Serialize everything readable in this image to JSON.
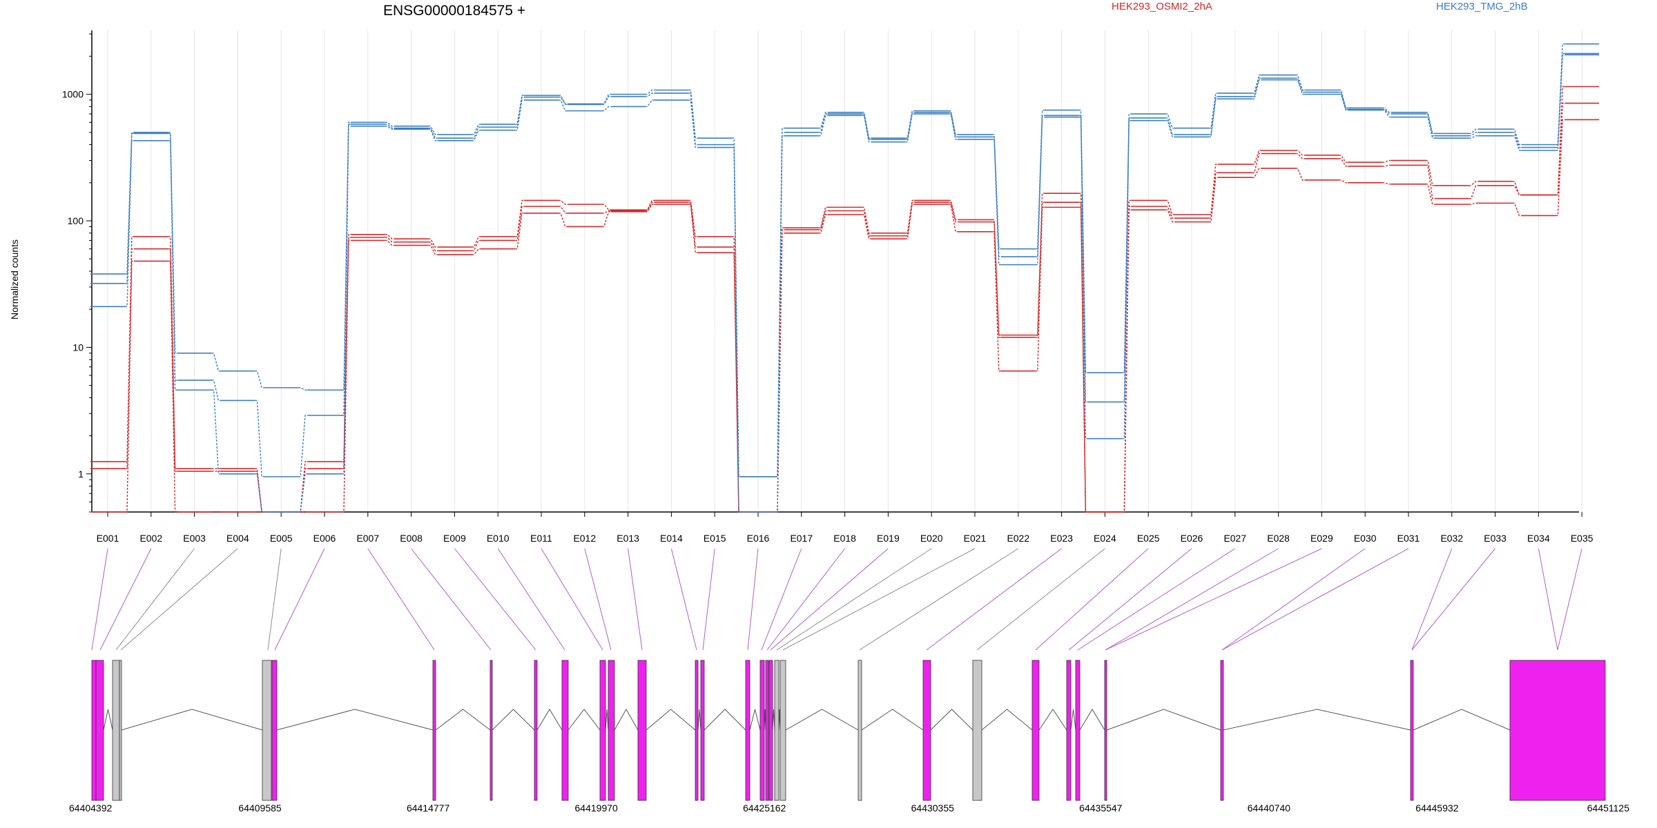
{
  "chart_data": {
    "type": "line",
    "title": "ENSG00000184575 +",
    "ylabel": "Normalized counts",
    "yscale": "log",
    "ylim": [
      0.5,
      3200
    ],
    "yticks": [
      {
        "value": 1,
        "label": "1"
      },
      {
        "value": 10,
        "label": "10"
      },
      {
        "value": 100,
        "label": "100"
      },
      {
        "value": 1000,
        "label": "1000"
      }
    ],
    "categories": [
      "E001",
      "E002",
      "E003",
      "E004",
      "E005",
      "E006",
      "E007",
      "E008",
      "E009",
      "E010",
      "E011",
      "E012",
      "E013",
      "E014",
      "E015",
      "E016",
      "E017",
      "E018",
      "E019",
      "E020",
      "E021",
      "E022",
      "E023",
      "E024",
      "E025",
      "E026",
      "E027",
      "E028",
      "E029",
      "E030",
      "E031",
      "E032",
      "E033",
      "E034",
      "E035"
    ],
    "legend": [
      {
        "label": "HEK293_OSMI2_2hA",
        "color": "#d62728"
      },
      {
        "label": "HEK293_TMG_2hB",
        "color": "#3a7fc1"
      }
    ],
    "series": [
      {
        "group": "HEK293_OSMI2_2hA",
        "color": "#d62728",
        "values": [
          1.25,
          75,
          1.1,
          1.1,
          0.5,
          1.25,
          78,
          72,
          62,
          75,
          145,
          135,
          122,
          145,
          75,
          0.5,
          88,
          128,
          80,
          145,
          102,
          12.5,
          165,
          0.5,
          145,
          112,
          280,
          360,
          330,
          290,
          300,
          190,
          205,
          160,
          1150
        ]
      },
      {
        "group": "HEK293_OSMI2_2hA",
        "color": "#d62728",
        "values": [
          1.1,
          60,
          1.05,
          1.05,
          0.5,
          1.1,
          74,
          68,
          58,
          70,
          130,
          115,
          120,
          140,
          62,
          0.5,
          85,
          120,
          76,
          140,
          98,
          12,
          140,
          0.5,
          130,
          105,
          240,
          340,
          310,
          270,
          275,
          150,
          190,
          160,
          850
        ]
      },
      {
        "group": "HEK293_OSMI2_2hA",
        "color": "#d62728",
        "values": [
          0.5,
          48,
          0.5,
          0.5,
          0.5,
          0.5,
          70,
          64,
          54,
          60,
          115,
          90,
          118,
          135,
          56,
          0.5,
          80,
          112,
          72,
          135,
          82,
          6.5,
          128,
          0.5,
          122,
          98,
          220,
          260,
          210,
          200,
          195,
          135,
          138,
          110,
          630
        ]
      },
      {
        "group": "HEK293_TMG_2hB",
        "color": "#3a7fc1",
        "values": [
          38,
          500,
          9,
          6.5,
          4.8,
          4.6,
          600,
          560,
          480,
          580,
          980,
          840,
          1000,
          1080,
          450,
          0.95,
          540,
          720,
          450,
          740,
          480,
          60,
          750,
          6.3,
          700,
          540,
          1020,
          1420,
          1080,
          780,
          720,
          490,
          530,
          400,
          2500
        ]
      },
      {
        "group": "HEK293_TMG_2hB",
        "color": "#3a7fc1",
        "values": [
          32,
          490,
          5.5,
          3.8,
          0.95,
          2.9,
          580,
          540,
          450,
          550,
          950,
          830,
          960,
          1020,
          400,
          0.95,
          500,
          700,
          440,
          720,
          460,
          52,
          680,
          3.7,
          650,
          480,
          960,
          1340,
          1040,
          760,
          700,
          470,
          500,
          380,
          2100
        ]
      },
      {
        "group": "HEK293_TMG_2hB",
        "color": "#3a7fc1",
        "values": [
          21,
          430,
          4.6,
          1,
          0.5,
          1,
          560,
          530,
          430,
          520,
          900,
          740,
          800,
          900,
          380,
          0.5,
          470,
          680,
          420,
          700,
          440,
          45,
          660,
          1.9,
          620,
          460,
          920,
          1300,
          1000,
          750,
          660,
          450,
          470,
          360,
          2050
        ]
      }
    ]
  },
  "gene_model": {
    "coordinate_labels": [
      "64404392",
      "64409585",
      "64414777",
      "64419970",
      "64425162",
      "64430355",
      "64435547",
      "64440740",
      "64445932",
      "64451125"
    ],
    "coordinate_range": [
      64404392,
      64451125
    ],
    "colors": {
      "tested_exon": "#ee22ee",
      "untested_exon": "#c8c8c8",
      "connector_tested": "#b25cc9",
      "connector_untested": "#8c8c8c"
    }
  }
}
